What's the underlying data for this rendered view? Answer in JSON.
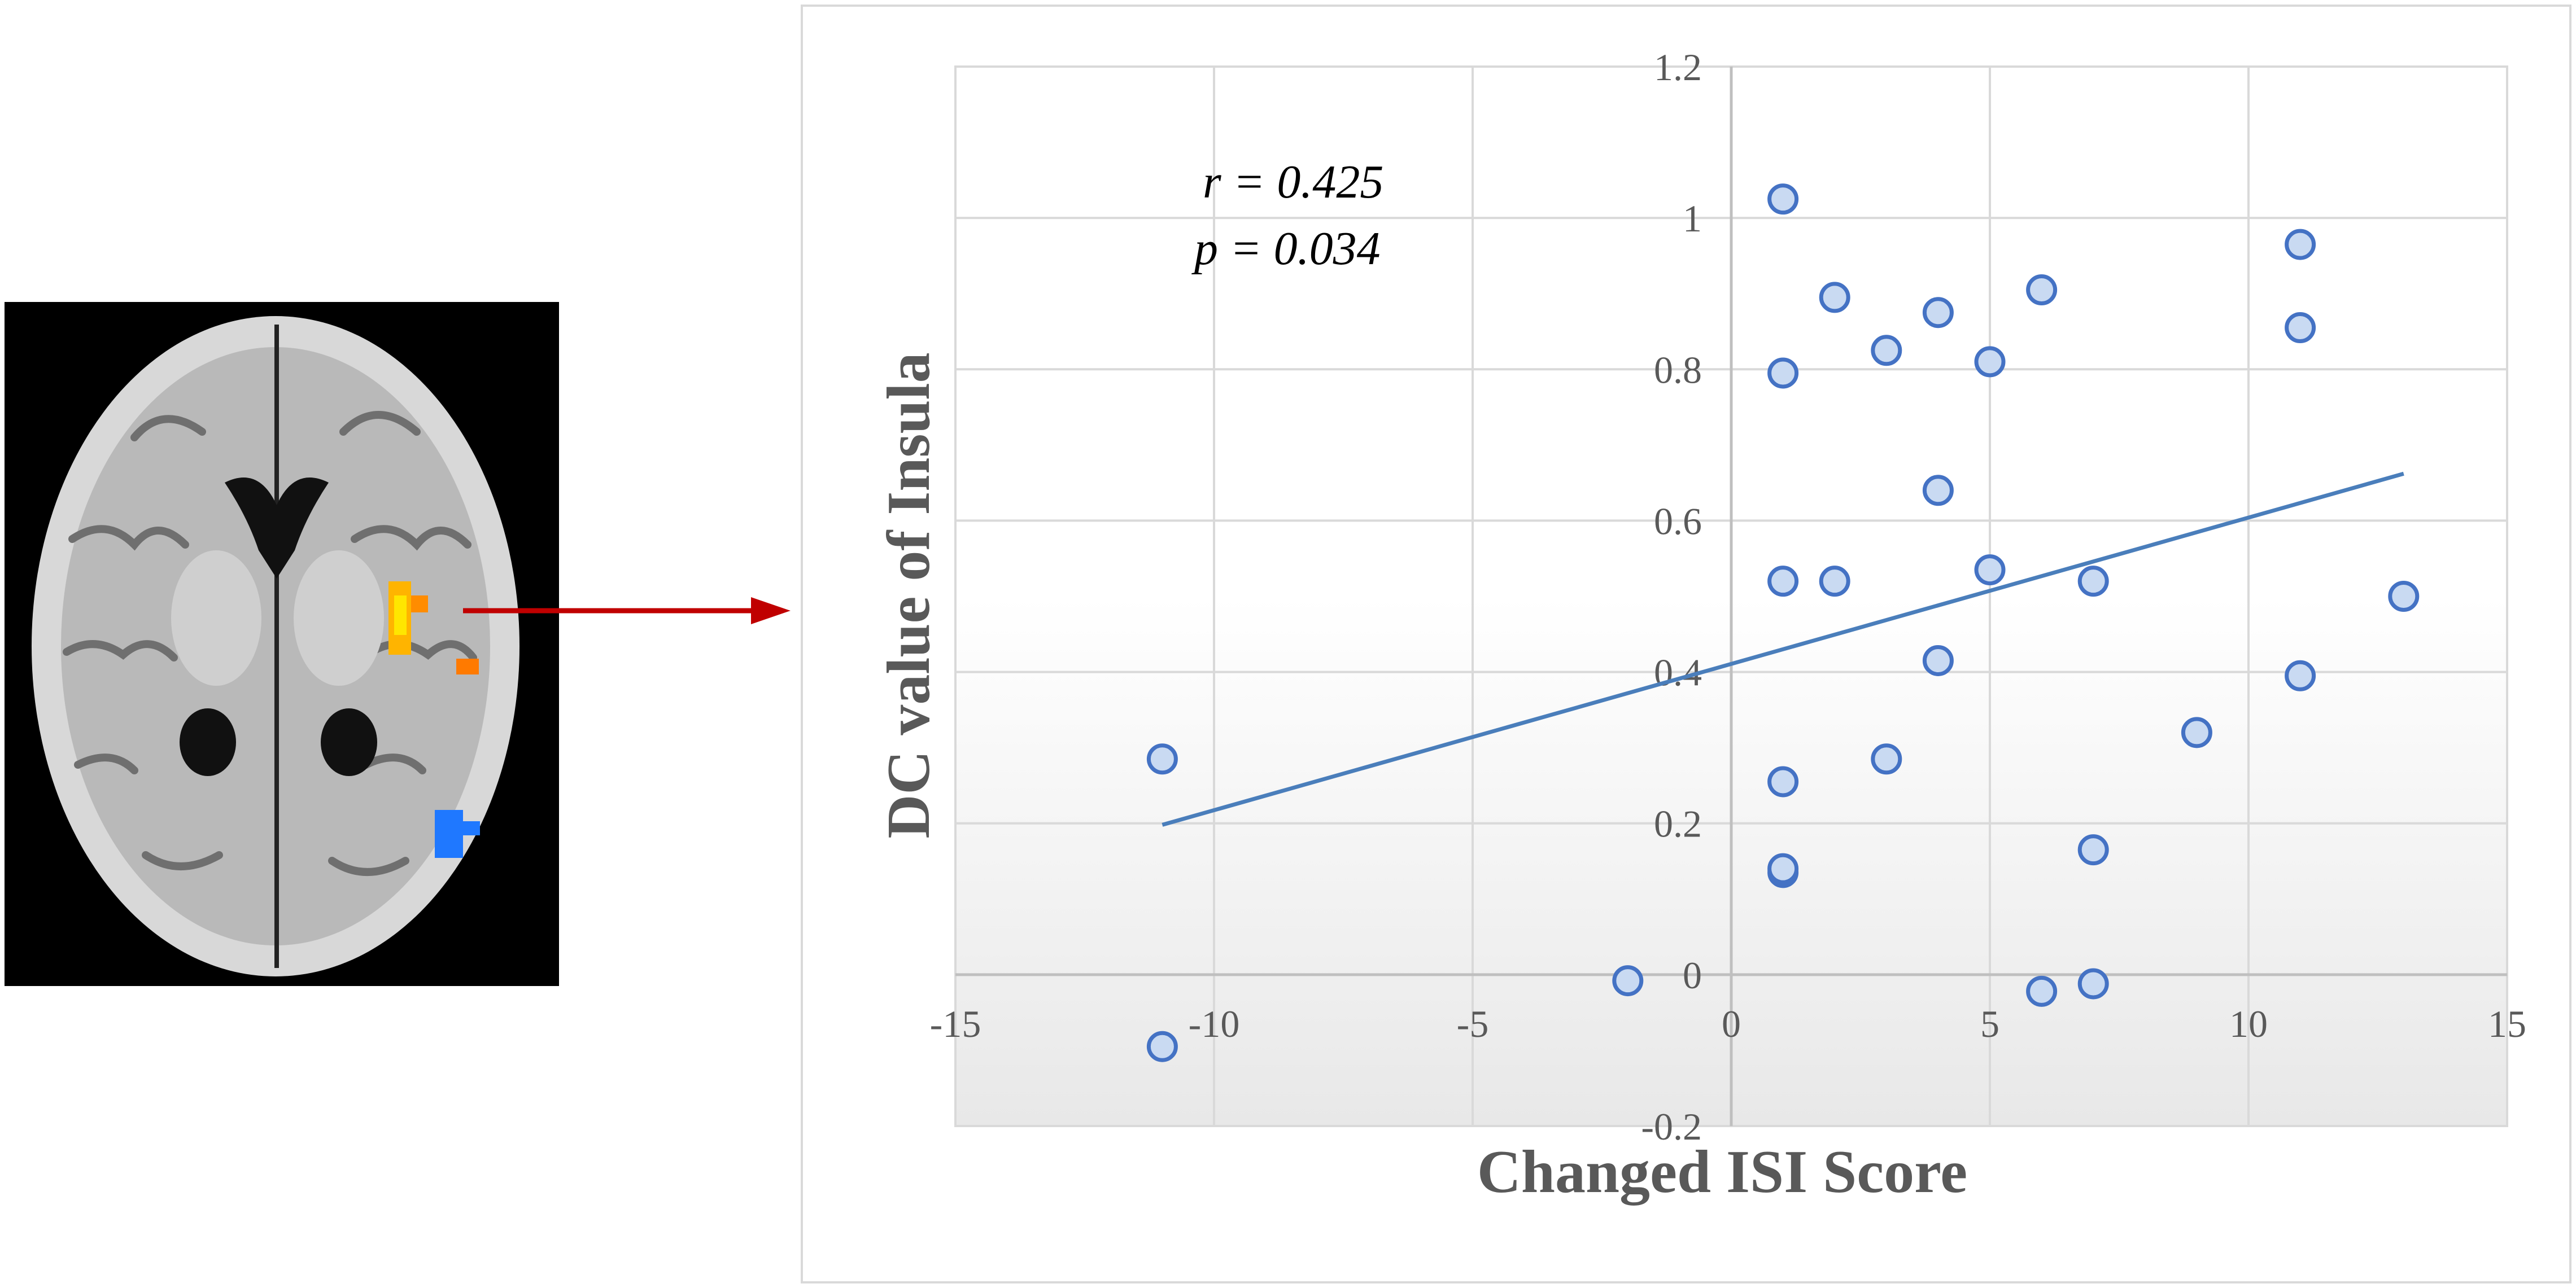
{
  "colors": {
    "marker_fill": "#c9daf2",
    "marker_stroke": "#4472c4",
    "trendline": "#4a7ebb",
    "gridline": "#d9d9d9",
    "axis_text": "#595959",
    "arrow": "#c00000",
    "activation_warm": "#ffb400",
    "activation_cool": "#1f78ff"
  },
  "brain_panel": {
    "description_icon": "brain-axial-slice-icon"
  },
  "annotation": {
    "r": "r = 0.425",
    "p": "p = 0.034"
  },
  "chart_data": {
    "type": "scatter",
    "title": "",
    "xlabel": "Changed ISI Score",
    "ylabel": "DC value of Insula",
    "xlim": [
      -15,
      15
    ],
    "ylim": [
      -0.2,
      1.2
    ],
    "x_ticks": [
      -15,
      -10,
      -5,
      0,
      5,
      10,
      15
    ],
    "y_ticks": [
      -0.2,
      0,
      0.2,
      0.4,
      0.6,
      0.8,
      1,
      1.2
    ],
    "x_tick_labels": [
      "-15",
      "-10",
      "-5",
      "0",
      "5",
      "10",
      "15"
    ],
    "y_tick_labels": [
      "-0.2",
      "0",
      "0.2",
      "0.4",
      "0.6",
      "0.8",
      "1",
      "1.2"
    ],
    "grid": true,
    "points": [
      {
        "x": -11,
        "y": 0.285
      },
      {
        "x": -11,
        "y": -0.095
      },
      {
        "x": -2,
        "y": -0.008
      },
      {
        "x": 1,
        "y": 1.025
      },
      {
        "x": 1,
        "y": 0.795
      },
      {
        "x": 1,
        "y": 0.52
      },
      {
        "x": 1,
        "y": 0.255
      },
      {
        "x": 1,
        "y": 0.135
      },
      {
        "x": 1,
        "y": 0.14
      },
      {
        "x": 2,
        "y": 0.895
      },
      {
        "x": 2,
        "y": 0.52
      },
      {
        "x": 3,
        "y": 0.825
      },
      {
        "x": 3,
        "y": 0.285
      },
      {
        "x": 4,
        "y": 0.875
      },
      {
        "x": 4,
        "y": 0.64
      },
      {
        "x": 4,
        "y": 0.415
      },
      {
        "x": 5,
        "y": 0.81
      },
      {
        "x": 5,
        "y": 0.535
      },
      {
        "x": 6,
        "y": 0.905
      },
      {
        "x": 6,
        "y": -0.022
      },
      {
        "x": 7,
        "y": 0.52
      },
      {
        "x": 7,
        "y": 0.165
      },
      {
        "x": 7,
        "y": -0.012
      },
      {
        "x": 9,
        "y": 0.32
      },
      {
        "x": 11,
        "y": 0.965
      },
      {
        "x": 11,
        "y": 0.855
      },
      {
        "x": 11,
        "y": 0.395
      },
      {
        "x": 13,
        "y": 0.5
      }
    ],
    "trendline": {
      "x0": -11,
      "y0": 0.198,
      "x1": 13,
      "y1": 0.662
    }
  }
}
